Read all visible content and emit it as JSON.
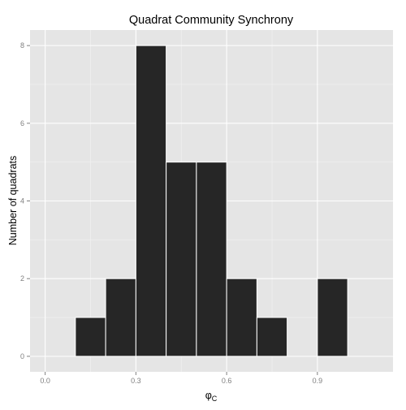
{
  "chart_data": {
    "type": "bar",
    "title": "Quadrat Community Synchrony",
    "xlabel": "φ",
    "xlabel_subscript": "C",
    "ylabel": "Number of quadrats",
    "bin_width": 0.1,
    "bins": [
      {
        "x0": 0.1,
        "x1": 0.2,
        "count": 1
      },
      {
        "x0": 0.2,
        "x1": 0.3,
        "count": 2
      },
      {
        "x0": 0.3,
        "x1": 0.4,
        "count": 8
      },
      {
        "x0": 0.4,
        "x1": 0.5,
        "count": 5
      },
      {
        "x0": 0.5,
        "x1": 0.6,
        "count": 5
      },
      {
        "x0": 0.6,
        "x1": 0.7,
        "count": 2
      },
      {
        "x0": 0.7,
        "x1": 0.8,
        "count": 1
      },
      {
        "x0": 0.8,
        "x1": 0.9,
        "count": 0
      },
      {
        "x0": 0.9,
        "x1": 1.0,
        "count": 2
      }
    ],
    "xlim": [
      -0.05,
      1.15
    ],
    "ylim": [
      -0.4,
      8.4
    ],
    "xticks": [
      0.0,
      0.3,
      0.6,
      0.9
    ],
    "xtick_labels": [
      "0.0",
      "0.3",
      "0.6",
      "0.9"
    ],
    "yticks": [
      0,
      2,
      4,
      6,
      8
    ],
    "ytick_labels": [
      "0",
      "2",
      "4",
      "6",
      "8"
    ],
    "grid": true,
    "colors": {
      "panel": "#e5e5e5",
      "grid_major": "#ffffff",
      "grid_minor": "#f2f2f2",
      "bar_fill": "#262626",
      "bar_outline": "#ffffff",
      "tick_text": "#7f7f7f",
      "title_text": "#000000"
    }
  }
}
